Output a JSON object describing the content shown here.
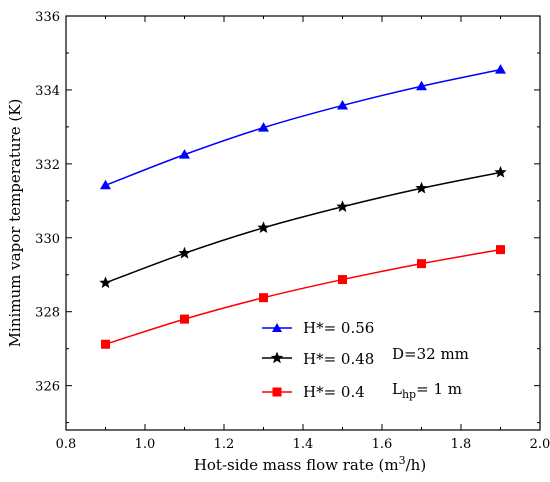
{
  "chart_data": {
    "type": "line",
    "xlabel": "Hot-side mass flow rate (m",
    "xlabel_sup": "3",
    "xlabel_tail": "/h)",
    "ylabel": "Minimum vapor temperature (K)",
    "xlim": [
      0.8,
      2.0
    ],
    "ylim": [
      324.8,
      336
    ],
    "xticks": [
      0.8,
      1.0,
      1.2,
      1.4,
      1.6,
      1.8,
      2.0
    ],
    "xtick_labels": [
      "0.8",
      "1.0",
      "1.2",
      "1.4",
      "1.6",
      "1.8",
      "2.0"
    ],
    "yticks": [
      326,
      328,
      330,
      332,
      334,
      336
    ],
    "ytick_labels": [
      "326",
      "328",
      "330",
      "332",
      "334",
      "336"
    ],
    "x": [
      0.9,
      1.1,
      1.3,
      1.5,
      1.7,
      1.9
    ],
    "series": [
      {
        "name": "H*= 0.56",
        "color": "#0000ff",
        "marker": "triangle",
        "values": [
          331.42,
          332.25,
          332.98,
          333.58,
          334.1,
          334.55
        ]
      },
      {
        "name": "H*= 0.48",
        "color": "#000000",
        "marker": "star",
        "values": [
          328.78,
          329.58,
          330.27,
          330.84,
          331.34,
          331.77
        ]
      },
      {
        "name": "H*= 0.4",
        "color": "#ff0000",
        "marker": "square",
        "values": [
          327.12,
          327.8,
          328.38,
          328.87,
          329.3,
          329.68
        ]
      }
    ],
    "annotations": {
      "diameter": "D=32 mm",
      "length_main": "L",
      "length_sub": "hp",
      "length_tail": "= 1 m"
    },
    "legend_position": "bottom-center",
    "grid": false
  }
}
